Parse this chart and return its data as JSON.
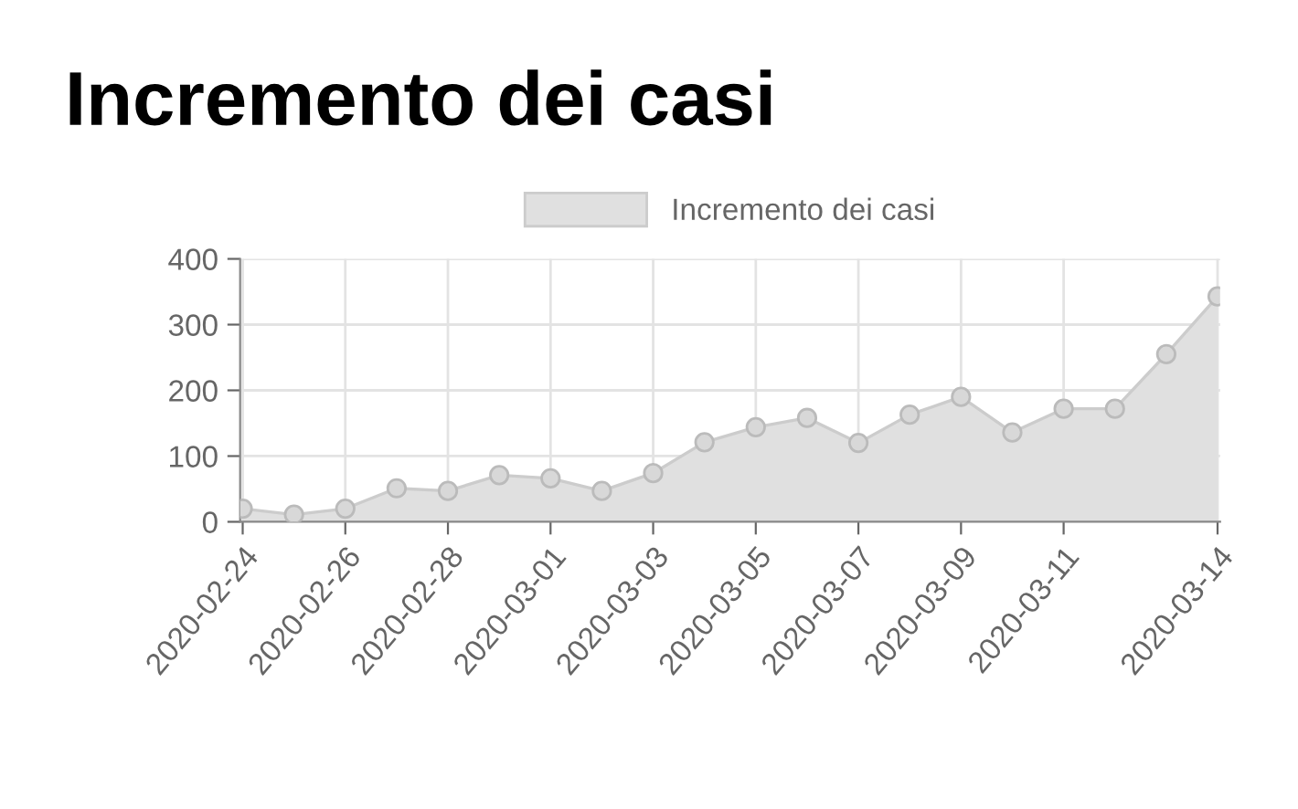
{
  "chart_data": {
    "type": "area",
    "title": "Incremento dei casi",
    "categories": [
      "2020-02-24",
      null,
      "2020-02-26",
      null,
      "2020-02-28",
      null,
      "2020-03-01",
      null,
      "2020-03-03",
      null,
      "2020-03-05",
      null,
      "2020-03-07",
      null,
      "2020-03-09",
      null,
      "2020-03-11",
      null,
      null,
      "2020-03-14"
    ],
    "series": [
      {
        "name": "Incremento dei casi",
        "color": "#e0e0e0",
        "values": [
          20,
          11,
          20,
          51,
          47,
          71,
          66,
          47,
          74,
          121,
          144,
          158,
          120,
          163,
          190,
          136,
          172,
          172,
          255,
          343
        ]
      }
    ],
    "ylim": [
      0,
      400
    ],
    "yticks": [
      0,
      100,
      200,
      300,
      400
    ],
    "grid": true,
    "legend": "top",
    "marker": "circle"
  }
}
